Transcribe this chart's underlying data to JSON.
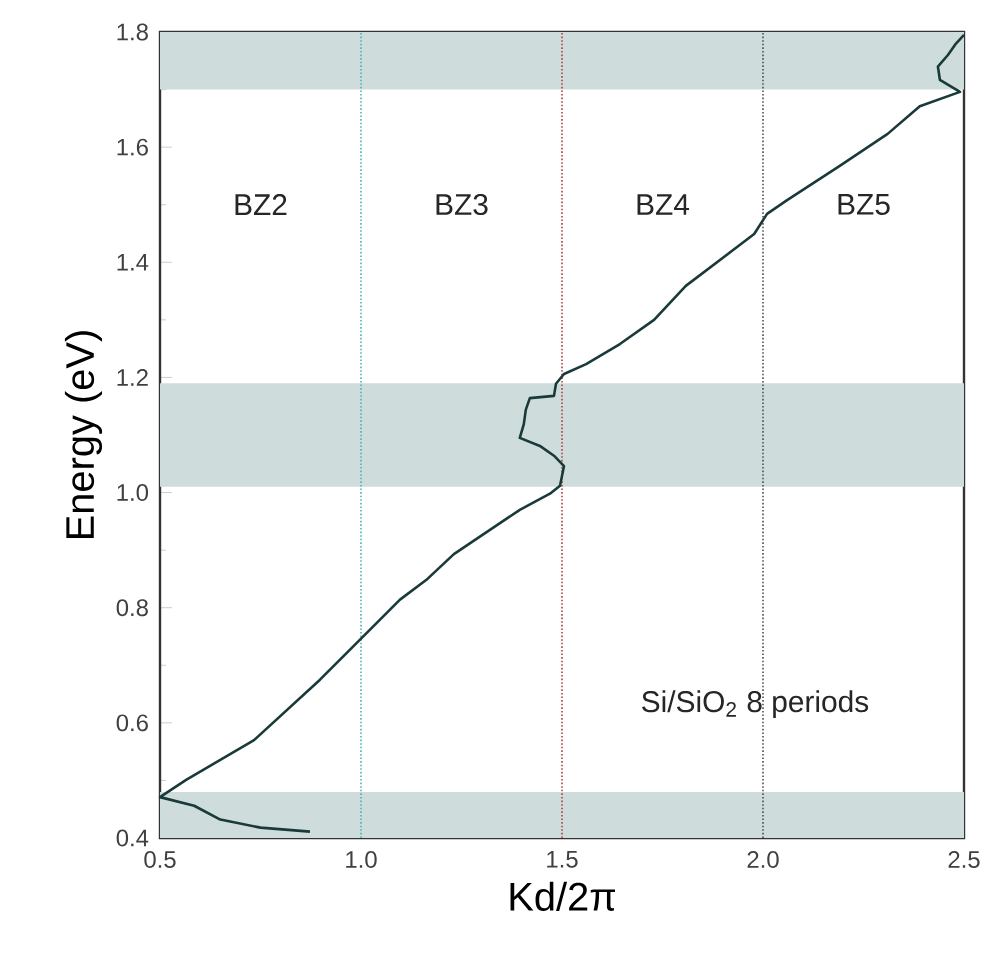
{
  "chart_data": {
    "type": "line",
    "xlabel": "Kd/2π",
    "ylabel": "Energy (eV)",
    "xlim": [
      0.5,
      2.5
    ],
    "ylim": [
      0.4,
      1.8
    ],
    "xticks": [
      {
        "value": 0.5,
        "label": "0.5"
      },
      {
        "value": 1.0,
        "label": "1.0"
      },
      {
        "value": 1.5,
        "label": "1.5"
      },
      {
        "value": 2.0,
        "label": "2.0"
      },
      {
        "value": 2.5,
        "label": "2.5"
      }
    ],
    "yticks": [
      {
        "value": 0.4,
        "label": "0.4"
      },
      {
        "value": 0.6,
        "label": "0.6"
      },
      {
        "value": 0.8,
        "label": "0.8"
      },
      {
        "value": 1.0,
        "label": "1.0"
      },
      {
        "value": 1.2,
        "label": "1.2"
      },
      {
        "value": 1.4,
        "label": "1.4"
      },
      {
        "value": 1.6,
        "label": "1.6"
      },
      {
        "value": 1.8,
        "label": "1.8"
      }
    ],
    "series": [
      {
        "color": "#1a3a3a",
        "x": [
          0.873,
          0.75,
          0.65,
          0.585,
          0.5,
          0.565,
          0.734,
          0.898,
          0.997,
          1.097,
          1.162,
          1.231,
          1.395,
          1.47,
          1.495,
          1.505,
          1.48,
          1.445,
          1.395,
          1.405,
          1.41,
          1.42,
          1.48,
          1.485,
          1.505,
          1.56,
          1.644,
          1.729,
          1.808,
          1.893,
          1.978,
          2.01,
          2.06,
          2.19,
          2.31,
          2.39,
          2.49,
          2.44,
          2.435,
          2.46,
          2.48,
          2.5
        ],
        "values": [
          0.411,
          0.418,
          0.432,
          0.456,
          0.471,
          0.501,
          0.57,
          0.675,
          0.744,
          0.814,
          0.848,
          0.893,
          0.97,
          0.998,
          1.012,
          1.046,
          1.064,
          1.081,
          1.095,
          1.119,
          1.144,
          1.164,
          1.168,
          1.189,
          1.206,
          1.223,
          1.258,
          1.3,
          1.359,
          1.404,
          1.449,
          1.484,
          1.508,
          1.567,
          1.623,
          1.671,
          1.696,
          1.717,
          1.74,
          1.76,
          1.78,
          1.795
        ]
      }
    ],
    "bands": [
      {
        "axis": "y",
        "from": 1.7,
        "to": 1.8,
        "color": "#cfdcdc"
      },
      {
        "axis": "y",
        "from": 1.01,
        "to": 1.19,
        "color": "#cfdcdc"
      },
      {
        "axis": "y",
        "from": 0.4,
        "to": 0.48,
        "color": "#cfdcdc"
      }
    ],
    "ref_lines": [
      {
        "axis": "x",
        "value": 1.0,
        "color": "#4fb0b8",
        "line_style": "dotted"
      },
      {
        "axis": "x",
        "value": 1.5,
        "color": "#b04040",
        "line_style": "dotted"
      },
      {
        "axis": "x",
        "value": 2.0,
        "color": "#505050",
        "line_style": "dotted"
      }
    ],
    "annotations": [
      "BZ2",
      "BZ3",
      "BZ4",
      "BZ5",
      "Si/SiO$_{2}$  8 periods"
    ]
  }
}
